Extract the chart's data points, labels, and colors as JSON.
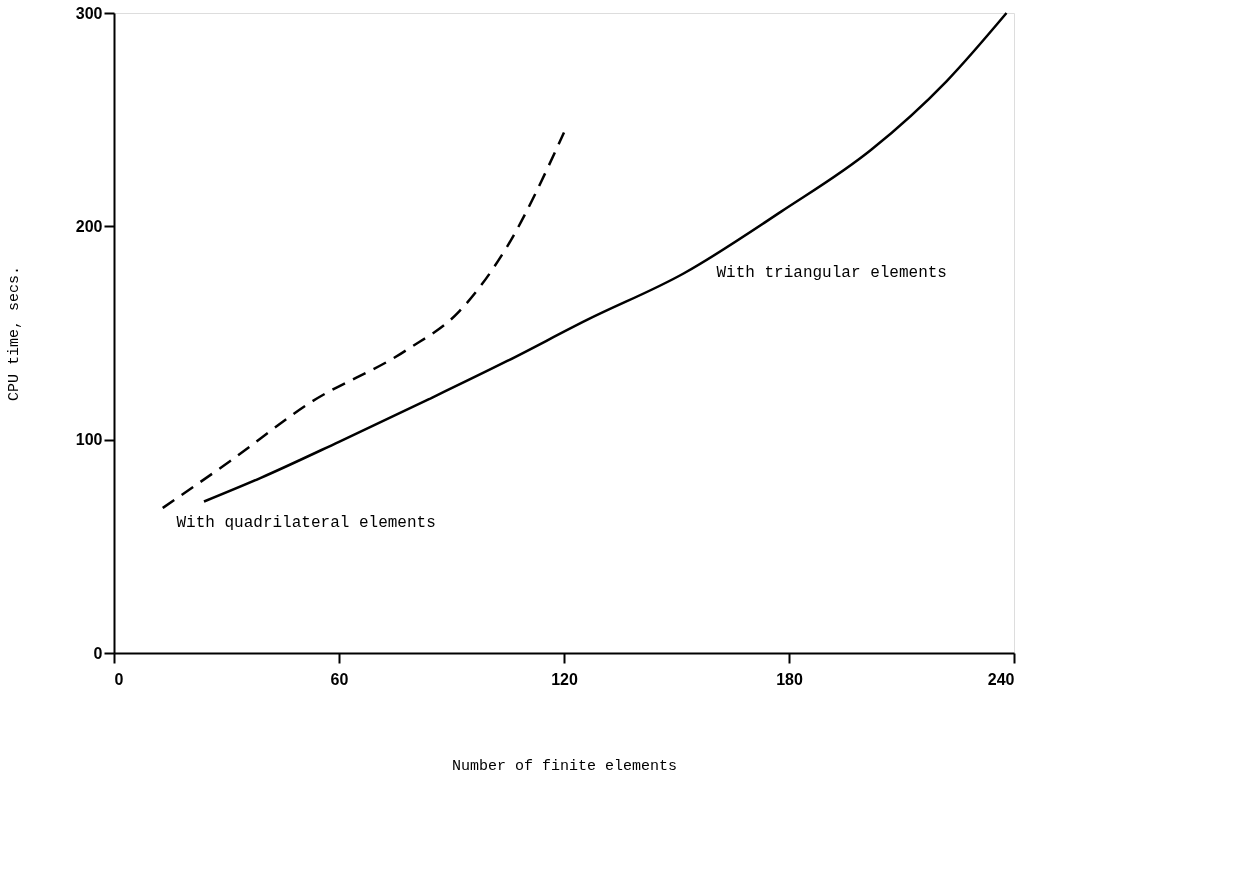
{
  "chart_data": {
    "type": "line",
    "xlabel": "Number of finite elements",
    "ylabel": "CPU time, secs.",
    "xlim": [
      0,
      240
    ],
    "ylim": [
      0,
      300
    ],
    "xticks": [
      0,
      60,
      120,
      180,
      240
    ],
    "yticks": [
      0,
      100,
      200,
      300
    ],
    "grid": false,
    "marker": "none",
    "series": [
      {
        "color": "#000000",
        "line_style": "dashed",
        "x": [
          13,
          31,
          52,
          78,
          92,
          105,
          120
        ],
        "values": [
          68,
          90,
          117,
          142,
          160,
          191,
          244
        ]
      },
      {
        "color": "#000000",
        "line_style": "solid",
        "x": [
          24,
          39,
          60,
          84,
          105,
          126,
          152,
          178,
          202,
          222,
          238
        ],
        "values": [
          71,
          82,
          99,
          119,
          137,
          156,
          178,
          207,
          236,
          268,
          300
        ]
      }
    ],
    "annotations": [
      {
        "text": "With quadrilateral elements",
        "x": 14,
        "y": 68
      },
      {
        "text": "With triangular elements",
        "x": 158,
        "y": 185
      }
    ]
  }
}
